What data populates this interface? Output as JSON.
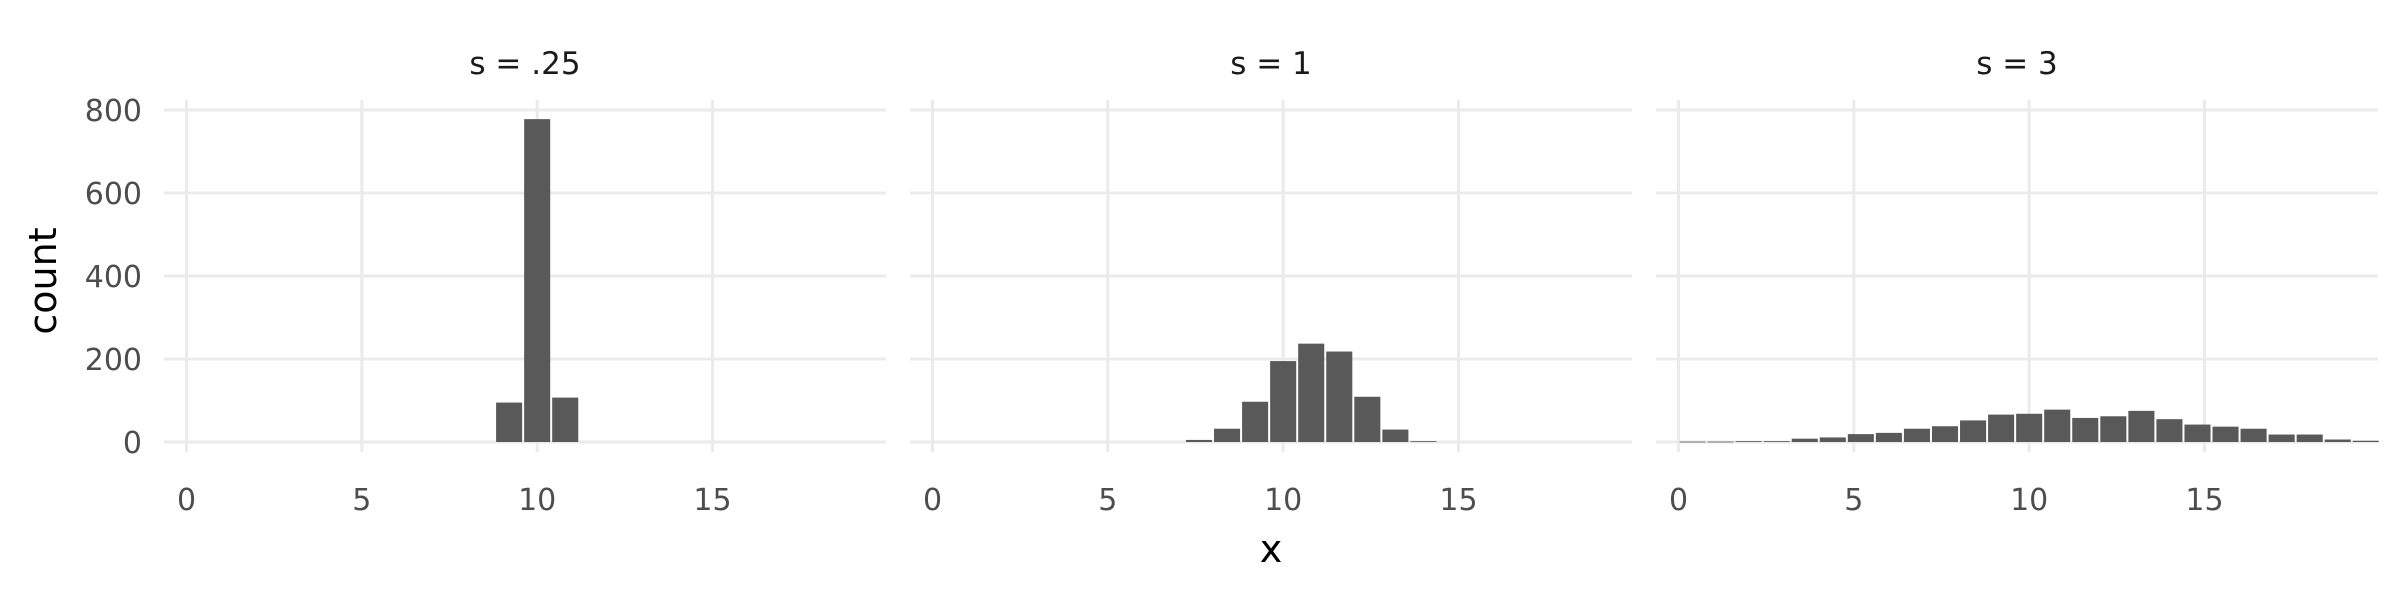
{
  "chart_data": {
    "type": "bar",
    "xlabel": "x",
    "ylabel": "count",
    "xlim": [
      -0.5,
      19.5
    ],
    "ylim": [
      0,
      800
    ],
    "x_ticks": [
      0,
      5,
      10,
      15
    ],
    "y_ticks": [
      0,
      200,
      400,
      600,
      800
    ],
    "bin_width": 0.8,
    "grid": true,
    "facets": [
      {
        "title": "s = .25",
        "bars": [
          {
            "x": 9.2,
            "count": 95
          },
          {
            "x": 10.0,
            "count": 778
          },
          {
            "x": 10.8,
            "count": 107
          }
        ]
      },
      {
        "title": "s = 1",
        "bars": [
          {
            "x": 7.6,
            "count": 5
          },
          {
            "x": 8.4,
            "count": 32
          },
          {
            "x": 9.2,
            "count": 97
          },
          {
            "x": 10.0,
            "count": 195
          },
          {
            "x": 10.8,
            "count": 237
          },
          {
            "x": 11.6,
            "count": 218
          },
          {
            "x": 12.4,
            "count": 109
          },
          {
            "x": 13.2,
            "count": 30
          },
          {
            "x": 14.0,
            "count": 2
          }
        ]
      },
      {
        "title": "s = 3",
        "bars": [
          {
            "x": 0.4,
            "count": 1
          },
          {
            "x": 1.2,
            "count": 1
          },
          {
            "x": 2.0,
            "count": 2
          },
          {
            "x": 2.8,
            "count": 2
          },
          {
            "x": 3.6,
            "count": 8
          },
          {
            "x": 4.4,
            "count": 11
          },
          {
            "x": 5.2,
            "count": 19
          },
          {
            "x": 6.0,
            "count": 22
          },
          {
            "x": 6.8,
            "count": 32
          },
          {
            "x": 7.6,
            "count": 38
          },
          {
            "x": 8.4,
            "count": 52
          },
          {
            "x": 9.2,
            "count": 66
          },
          {
            "x": 10.0,
            "count": 68
          },
          {
            "x": 10.8,
            "count": 78
          },
          {
            "x": 11.6,
            "count": 58
          },
          {
            "x": 12.4,
            "count": 62
          },
          {
            "x": 13.2,
            "count": 75
          },
          {
            "x": 14.0,
            "count": 55
          },
          {
            "x": 14.8,
            "count": 42
          },
          {
            "x": 15.6,
            "count": 37
          },
          {
            "x": 16.4,
            "count": 32
          },
          {
            "x": 17.2,
            "count": 18
          },
          {
            "x": 18.0,
            "count": 18
          },
          {
            "x": 18.8,
            "count": 6
          },
          {
            "x": 19.6,
            "count": 3
          }
        ]
      }
    ]
  },
  "colors": {
    "bar": "#595959",
    "grid": "#ebebeb",
    "tick_text": "#4d4d4d",
    "title_text": "#1a1a1a",
    "axis_title_text": "#000000"
  }
}
